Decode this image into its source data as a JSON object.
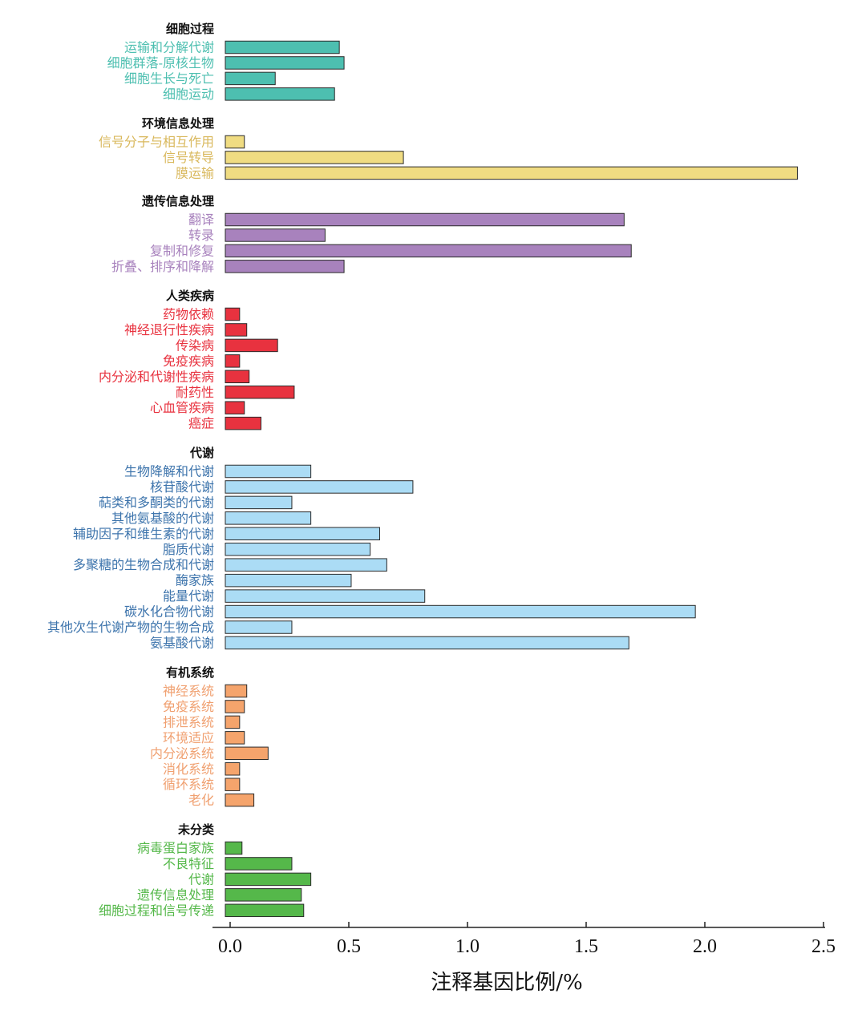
{
  "chart_data": {
    "type": "bar",
    "orientation": "horizontal",
    "xlabel": "注释基因比例/%",
    "xlim": [
      0,
      2.5
    ],
    "xticks": [
      "0.0",
      "0.5",
      "1.0",
      "1.5",
      "2.0",
      "2.5"
    ],
    "grid": false,
    "legend": "none",
    "groups": [
      {
        "title": "细胞过程",
        "color": "#4dbfb0",
        "label_color": "#4dbfb0",
        "categories": [
          "运输和分解代谢",
          "细胞群落-原核生物",
          "细胞生长与死亡",
          "细胞运动"
        ],
        "values": [
          0.46,
          0.48,
          0.19,
          0.44
        ]
      },
      {
        "title": "环境信息处理",
        "color": "#f0dc82",
        "label_color": "#d9b85c",
        "categories": [
          "信号分子与相互作用",
          "信号转导",
          "膜运输"
        ],
        "values": [
          0.06,
          0.73,
          2.39
        ]
      },
      {
        "title": "遗传信息处理",
        "color": "#a882bd",
        "label_color": "#a882bd",
        "categories": [
          "翻译",
          "转录",
          "复制和修复",
          "折叠、排序和降解"
        ],
        "values": [
          1.66,
          0.4,
          1.69,
          0.48
        ]
      },
      {
        "title": "人类疾病",
        "color": "#e8323f",
        "label_color": "#e8323f",
        "categories": [
          "药物依赖",
          "神经退行性疾病",
          "传染病",
          "免疫疾病",
          "内分泌和代谢性疾病",
          "耐药性",
          "心血管疾病",
          "癌症"
        ],
        "values": [
          0.04,
          0.07,
          0.2,
          0.04,
          0.08,
          0.27,
          0.06,
          0.13
        ]
      },
      {
        "title": "代谢",
        "color": "#abdcf5",
        "label_color": "#3d74ac",
        "categories": [
          "生物降解和代谢",
          "核苷酸代谢",
          "萜类和多酮类的代谢",
          "其他氨基酸的代谢",
          "辅助因子和维生素的代谢",
          "脂质代谢",
          "多聚糖的生物合成和代谢",
          "酶家族",
          "能量代谢",
          "碳水化合物代谢",
          "其他次生代谢产物的生物合成",
          "氨基酸代谢"
        ],
        "values": [
          0.34,
          0.77,
          0.26,
          0.34,
          0.63,
          0.59,
          0.66,
          0.51,
          0.82,
          1.96,
          0.26,
          1.68
        ]
      },
      {
        "title": "有机系统",
        "color": "#f5a46c",
        "label_color": "#f0a070",
        "categories": [
          "神经系统",
          "免疫系统",
          "排泄系统",
          "环境适应",
          "内分泌系统",
          "消化系统",
          "循环系统",
          "老化"
        ],
        "values": [
          0.07,
          0.06,
          0.04,
          0.06,
          0.16,
          0.04,
          0.04,
          0.1
        ]
      },
      {
        "title": "未分类",
        "color": "#55b84a",
        "label_color": "#55b84a",
        "categories": [
          "病毒蛋白家族",
          "不良特征",
          "代谢",
          "遗传信息处理",
          "细胞过程和信号传递"
        ],
        "values": [
          0.05,
          0.26,
          0.34,
          0.3,
          0.31
        ]
      }
    ]
  }
}
